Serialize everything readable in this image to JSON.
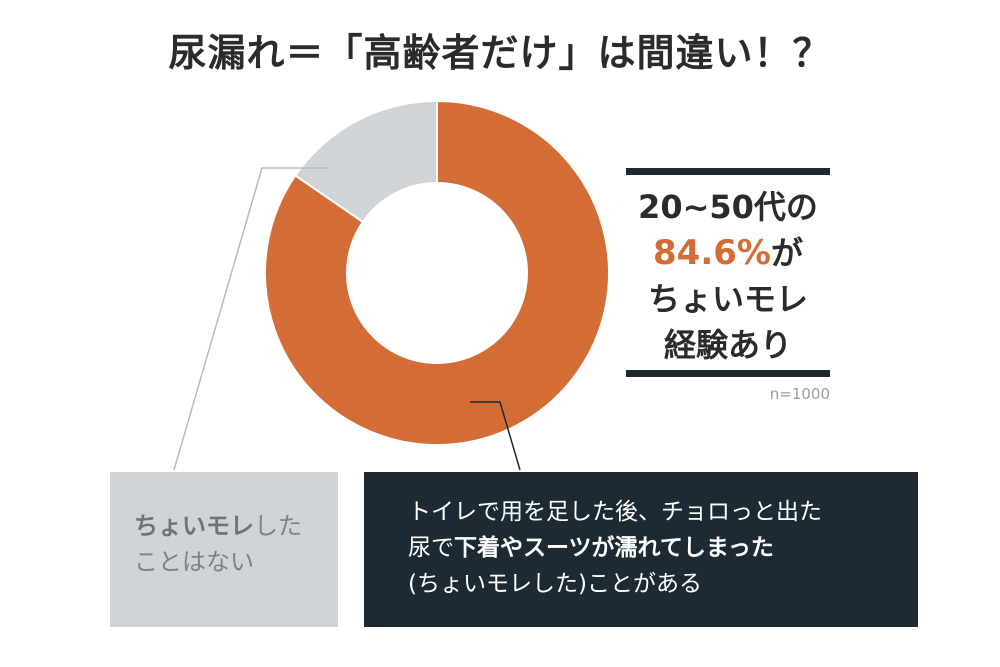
{
  "title": "尿漏れ＝「高齢者だけ」は間違い！？",
  "chart_data": {
    "type": "pie",
    "donut": true,
    "sample_label": "n=1000",
    "slices": [
      {
        "label_bold": "トイレで用を足した後、チョロっと出た",
        "value": 84.6,
        "color": "#d36c35"
      },
      {
        "label_bold": "ちょいモレしたことはない",
        "value": 15.4,
        "color": "#d1d4d6"
      }
    ]
  },
  "callout": {
    "line1": "20~50代の",
    "line2_pct": "84.6%",
    "line2_suffix": "が",
    "line3": "ちょいモレ",
    "line4": "経験あり"
  },
  "gray_box": {
    "bold": "ちょいモレ",
    "rest1": "した",
    "line2": "ことはない"
  },
  "dark_box": {
    "line1": "トイレで用を足した後、チョロっと出た",
    "line2_a": "尿で",
    "line2_b": "下着やスーツが濡れてしまった",
    "line3": "(ちょいモレした)ことがある"
  }
}
